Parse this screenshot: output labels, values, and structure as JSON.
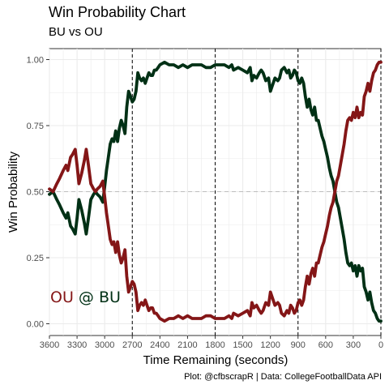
{
  "header": {
    "title": "Win Probability Chart",
    "subtitle": "BU vs OU"
  },
  "caption": "Plot: @cfbscrapR | Data: CollegeFootballData API",
  "matchup": {
    "away": "OU",
    "at": " @ ",
    "home": "BU"
  },
  "colors": {
    "away": "#841617",
    "home": "#003015",
    "grid": "#ebebeb",
    "refline": "#bebebe",
    "quarter": "#000000"
  },
  "chart_data": {
    "type": "line",
    "title": "Win Probability Chart",
    "subtitle": "BU vs OU",
    "xlabel": "Time Remaining (seconds)",
    "ylabel": "Win Probability",
    "xlim": [
      3600,
      0
    ],
    "ylim": [
      0,
      1
    ],
    "x_ticks": [
      3600,
      3300,
      3000,
      2700,
      2400,
      2100,
      1800,
      1500,
      1200,
      900,
      600,
      300,
      0
    ],
    "x_tick_labels": [
      "3600",
      "3300",
      "3000",
      "2700",
      "2400",
      "2100",
      "1800",
      "1500",
      "1200",
      "900",
      "600",
      "300",
      "0"
    ],
    "y_ticks": [
      0,
      0.25,
      0.5,
      0.75,
      1.0
    ],
    "y_tick_labels": [
      "0.00",
      "0.25",
      "0.50",
      "0.75",
      "1.00"
    ],
    "reference_lines": {
      "horizontal": [
        0.5
      ],
      "vertical": [
        2700,
        1800,
        900,
        0
      ]
    },
    "grid": true,
    "legend": "none",
    "series": [
      {
        "name": "BU",
        "color": "#003015",
        "x": [
          3600,
          3560,
          3520,
          3490,
          3450,
          3420,
          3400,
          3370,
          3350,
          3320,
          3300,
          3280,
          3250,
          3220,
          3200,
          3180,
          3150,
          3120,
          3100,
          3080,
          3050,
          3020,
          3000,
          2980,
          2960,
          2940,
          2920,
          2900,
          2880,
          2860,
          2840,
          2820,
          2800,
          2780,
          2760,
          2740,
          2720,
          2700,
          2680,
          2660,
          2640,
          2620,
          2600,
          2580,
          2560,
          2540,
          2520,
          2500,
          2480,
          2460,
          2440,
          2420,
          2400,
          2350,
          2300,
          2250,
          2200,
          2150,
          2100,
          2050,
          2000,
          1950,
          1900,
          1850,
          1800,
          1750,
          1700,
          1650,
          1620,
          1600,
          1550,
          1500,
          1450,
          1420,
          1400,
          1380,
          1350,
          1320,
          1300,
          1280,
          1250,
          1220,
          1200,
          1180,
          1150,
          1120,
          1100,
          1080,
          1050,
          1020,
          1000,
          980,
          960,
          940,
          920,
          900,
          880,
          860,
          840,
          820,
          800,
          780,
          760,
          740,
          720,
          700,
          680,
          660,
          640,
          620,
          600,
          580,
          560,
          540,
          520,
          500,
          480,
          460,
          440,
          420,
          400,
          380,
          360,
          340,
          320,
          300,
          280,
          260,
          240,
          220,
          200,
          180,
          160,
          140,
          120,
          100,
          80,
          60,
          40,
          20,
          0
        ],
        "values": [
          0.49,
          0.5,
          0.47,
          0.45,
          0.42,
          0.4,
          0.42,
          0.37,
          0.36,
          0.34,
          0.4,
          0.47,
          0.43,
          0.38,
          0.34,
          0.39,
          0.47,
          0.49,
          0.5,
          0.49,
          0.48,
          0.46,
          0.52,
          0.58,
          0.63,
          0.68,
          0.7,
          0.69,
          0.73,
          0.69,
          0.74,
          0.77,
          0.75,
          0.72,
          0.82,
          0.88,
          0.86,
          0.84,
          0.85,
          0.88,
          0.95,
          0.93,
          0.92,
          0.93,
          0.91,
          0.93,
          0.95,
          0.94,
          0.94,
          0.96,
          0.96,
          0.97,
          0.98,
          0.99,
          0.98,
          0.98,
          0.97,
          0.98,
          0.97,
          0.98,
          0.98,
          0.98,
          0.97,
          0.97,
          0.98,
          0.98,
          0.98,
          0.97,
          0.98,
          0.96,
          0.97,
          0.96,
          0.95,
          0.97,
          0.92,
          0.94,
          0.93,
          0.95,
          0.96,
          0.95,
          0.92,
          0.93,
          0.88,
          0.9,
          0.93,
          0.92,
          0.93,
          0.96,
          0.97,
          0.95,
          0.96,
          0.93,
          0.94,
          0.96,
          0.95,
          0.92,
          0.91,
          0.93,
          0.91,
          0.86,
          0.82,
          0.85,
          0.81,
          0.79,
          0.82,
          0.77,
          0.77,
          0.74,
          0.71,
          0.69,
          0.66,
          0.63,
          0.59,
          0.56,
          0.54,
          0.5,
          0.46,
          0.44,
          0.4,
          0.36,
          0.32,
          0.27,
          0.23,
          0.22,
          0.23,
          0.2,
          0.22,
          0.18,
          0.22,
          0.2,
          0.21,
          0.14,
          0.12,
          0.09,
          0.12,
          0.08,
          0.05,
          0.04,
          0.02,
          0.01,
          0.01
        ]
      },
      {
        "name": "OU",
        "color": "#841617",
        "x": [
          3600,
          3560,
          3520,
          3490,
          3450,
          3420,
          3400,
          3370,
          3350,
          3320,
          3300,
          3280,
          3250,
          3220,
          3200,
          3180,
          3150,
          3120,
          3100,
          3080,
          3050,
          3020,
          3000,
          2980,
          2960,
          2940,
          2920,
          2900,
          2880,
          2860,
          2840,
          2820,
          2800,
          2780,
          2760,
          2740,
          2720,
          2700,
          2680,
          2660,
          2640,
          2620,
          2600,
          2580,
          2560,
          2540,
          2520,
          2500,
          2480,
          2460,
          2440,
          2420,
          2400,
          2350,
          2300,
          2250,
          2200,
          2150,
          2100,
          2050,
          2000,
          1950,
          1900,
          1850,
          1800,
          1750,
          1700,
          1650,
          1620,
          1600,
          1550,
          1500,
          1450,
          1420,
          1400,
          1380,
          1350,
          1320,
          1300,
          1280,
          1250,
          1220,
          1200,
          1180,
          1150,
          1120,
          1100,
          1080,
          1050,
          1020,
          1000,
          980,
          960,
          940,
          920,
          900,
          880,
          860,
          840,
          820,
          800,
          780,
          760,
          740,
          720,
          700,
          680,
          660,
          640,
          620,
          600,
          580,
          560,
          540,
          520,
          500,
          480,
          460,
          440,
          420,
          400,
          380,
          360,
          340,
          320,
          300,
          280,
          260,
          240,
          220,
          200,
          180,
          160,
          140,
          120,
          100,
          80,
          60,
          40,
          20,
          0
        ],
        "values": [
          0.51,
          0.5,
          0.53,
          0.55,
          0.58,
          0.6,
          0.58,
          0.63,
          0.64,
          0.66,
          0.6,
          0.53,
          0.57,
          0.62,
          0.66,
          0.61,
          0.53,
          0.51,
          0.5,
          0.51,
          0.52,
          0.54,
          0.48,
          0.42,
          0.37,
          0.32,
          0.3,
          0.31,
          0.27,
          0.31,
          0.26,
          0.23,
          0.25,
          0.28,
          0.18,
          0.12,
          0.14,
          0.16,
          0.15,
          0.12,
          0.05,
          0.07,
          0.08,
          0.07,
          0.09,
          0.07,
          0.05,
          0.06,
          0.06,
          0.04,
          0.04,
          0.03,
          0.02,
          0.01,
          0.02,
          0.02,
          0.03,
          0.02,
          0.03,
          0.02,
          0.02,
          0.02,
          0.03,
          0.03,
          0.02,
          0.02,
          0.02,
          0.03,
          0.02,
          0.04,
          0.03,
          0.04,
          0.05,
          0.03,
          0.08,
          0.06,
          0.07,
          0.05,
          0.04,
          0.05,
          0.08,
          0.07,
          0.12,
          0.1,
          0.07,
          0.08,
          0.07,
          0.04,
          0.03,
          0.05,
          0.04,
          0.07,
          0.06,
          0.04,
          0.05,
          0.08,
          0.09,
          0.07,
          0.09,
          0.14,
          0.18,
          0.15,
          0.19,
          0.21,
          0.18,
          0.23,
          0.23,
          0.26,
          0.29,
          0.31,
          0.34,
          0.37,
          0.41,
          0.44,
          0.46,
          0.5,
          0.54,
          0.56,
          0.6,
          0.64,
          0.68,
          0.73,
          0.77,
          0.78,
          0.77,
          0.8,
          0.78,
          0.82,
          0.78,
          0.8,
          0.79,
          0.86,
          0.88,
          0.91,
          0.88,
          0.92,
          0.95,
          0.96,
          0.98,
          0.99,
          0.99
        ]
      }
    ]
  }
}
